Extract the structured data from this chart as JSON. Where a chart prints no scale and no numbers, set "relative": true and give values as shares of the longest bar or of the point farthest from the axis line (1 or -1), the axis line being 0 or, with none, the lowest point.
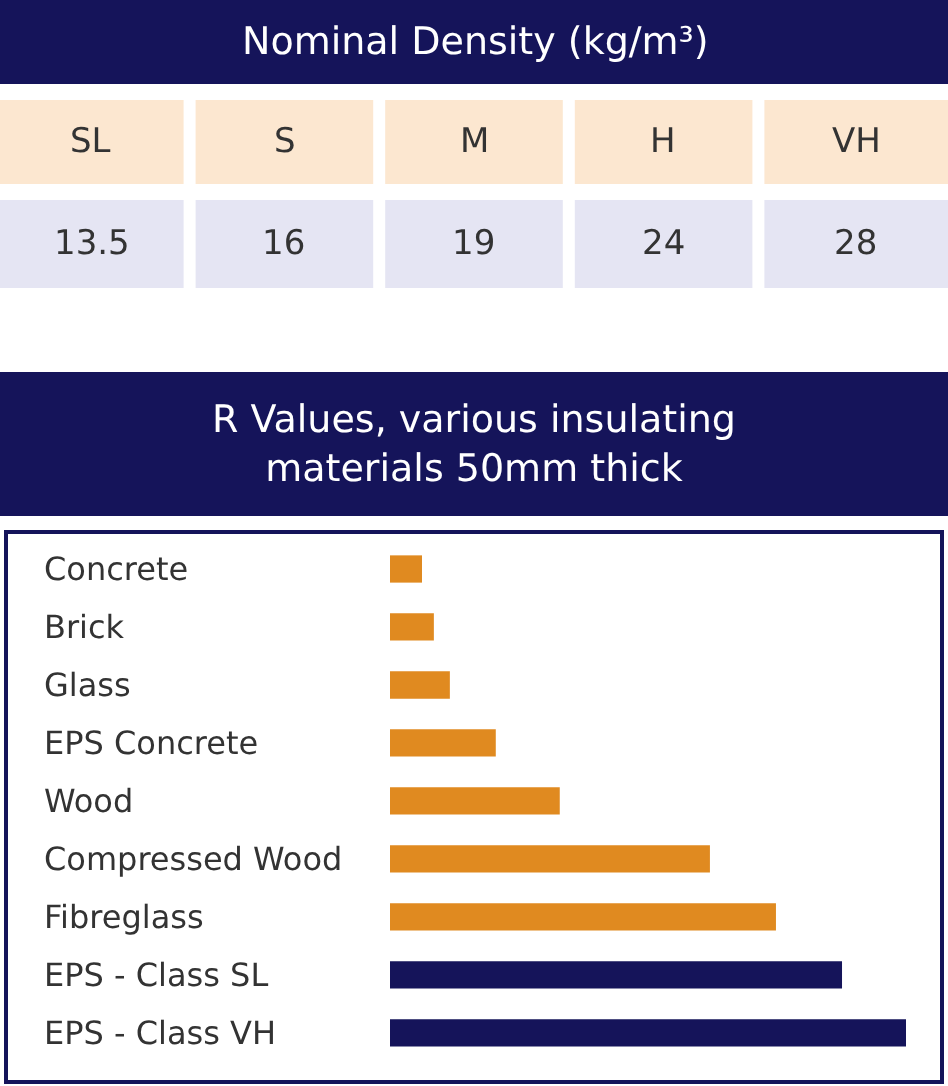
{
  "chart_data": [
    {
      "type": "other",
      "title": "Nominal Density (kg/m³)",
      "categories": [
        "SL",
        "S",
        "M",
        "H",
        "VH"
      ],
      "values": [
        13.5,
        16,
        19,
        24,
        28
      ],
      "data_labels": true
    },
    {
      "type": "bar",
      "orientation": "horizontal",
      "relative": true,
      "title": "R Values, various insulating materials 50mm thick",
      "categories": [
        "Concrete",
        "Brick",
        "Glass",
        "EPS Concrete",
        "Wood",
        "Compressed Wood",
        "Fibreglass",
        "EPS - Class SL",
        "EPS - Class VH"
      ],
      "values": [
        0.062,
        0.085,
        0.116,
        0.205,
        0.329,
        0.62,
        0.748,
        0.876,
        1
      ],
      "colors": [
        "#e08a20",
        "#e08a20",
        "#e08a20",
        "#e08a20",
        "#e08a20",
        "#e08a20",
        "#e08a20",
        "#15145a",
        "#15145a"
      ]
    }
  ]
}
